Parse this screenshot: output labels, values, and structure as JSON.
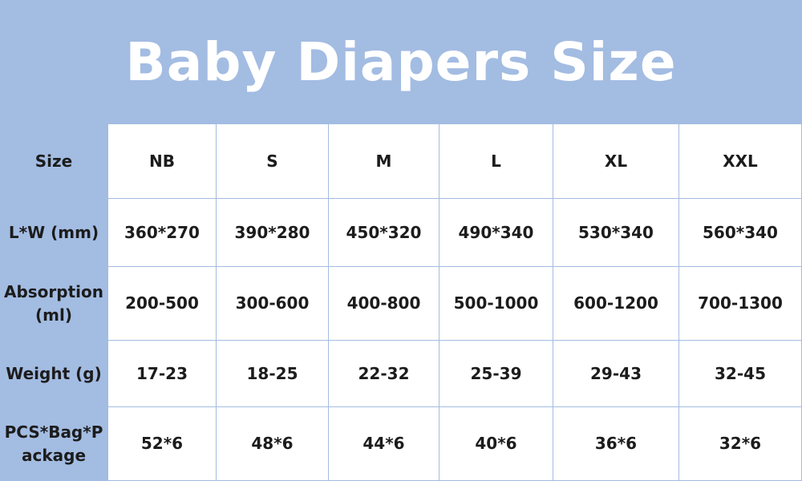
{
  "title": "Baby Diapers Size",
  "table": {
    "rows": [
      [
        "Size",
        "NB",
        "S",
        "M",
        "L",
        "XL",
        "XXL"
      ],
      [
        "L*W (mm)",
        "360*270",
        "390*280",
        "450*320",
        "490*340",
        "530*340",
        "560*340"
      ],
      [
        "Absorption (ml)",
        "200-500",
        "300-600",
        "400-800",
        "500-1000",
        "600-1200",
        "700-1300"
      ],
      [
        "Weight (g)",
        "17-23",
        "18-25",
        "22-32",
        "25-39",
        "29-43",
        "32-45"
      ],
      [
        "PCS*Bag*Package",
        "52*6",
        "48*6",
        "44*6",
        "40*6",
        "36*6",
        "32*6"
      ]
    ]
  }
}
